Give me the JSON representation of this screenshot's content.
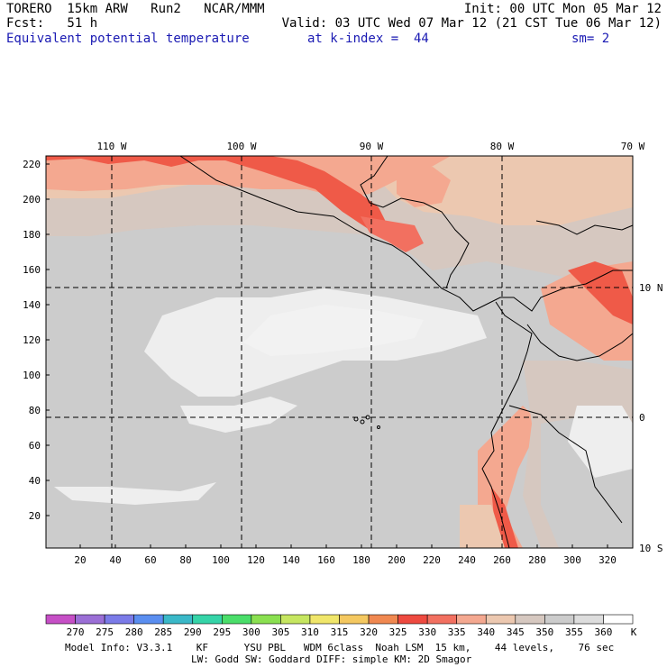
{
  "header": {
    "line1_left": "TORERO  15km ARW   Run2   NCAR/MMM",
    "line1_right": "Init: 00 UTC Mon 05 Mar 12",
    "line2_left": "Fcst:   51 h",
    "line2_right": "Valid: 03 UTC Wed 07 Mar 12 (21 CST Tue 06 Mar 12)",
    "field_name": "Equivalent potential temperature",
    "level": "at k-index =  44",
    "smoothing": "sm= 2"
  },
  "map": {
    "lon_labels": [
      "110 W",
      "100 W",
      "90 W",
      "80 W",
      "70 W"
    ],
    "lat_labels": [
      "10 N",
      "0",
      "10 S"
    ],
    "y_grid_labels": [
      "220",
      "200",
      "180",
      "160",
      "140",
      "120",
      "100",
      "80",
      "60",
      "40",
      "20"
    ],
    "x_grid_labels": [
      "20",
      "40",
      "60",
      "80",
      "100",
      "120",
      "140",
      "160",
      "180",
      "200",
      "220",
      "240",
      "260",
      "280",
      "300",
      "320"
    ]
  },
  "colorbar": {
    "values": [
      "270",
      "275",
      "280",
      "285",
      "290",
      "295",
      "300",
      "305",
      "310",
      "315",
      "320",
      "325",
      "330",
      "335",
      "340",
      "345",
      "350",
      "355",
      "360"
    ],
    "unit": "K",
    "colors": [
      "#c64fc6",
      "#9b6fd6",
      "#7b7be8",
      "#5a8ef0",
      "#3ab8c8",
      "#35d4a8",
      "#4ade6a",
      "#8ae050",
      "#c6e660",
      "#f0e66a",
      "#f4c860",
      "#f08850",
      "#ee4a40",
      "#f27060",
      "#f4a890",
      "#ecc8b0",
      "#d6c8c0",
      "#cccccc",
      "#dddddd",
      "#ffffff"
    ]
  },
  "footer": {
    "line1": "Model Info: V3.3.1    KF      YSU PBL   WDM 6class  Noah LSM  15 km,    44 levels,    76 sec",
    "line2": "LW: Godd SW: Goddard DIFF: simple KM: 2D Smagor"
  }
}
